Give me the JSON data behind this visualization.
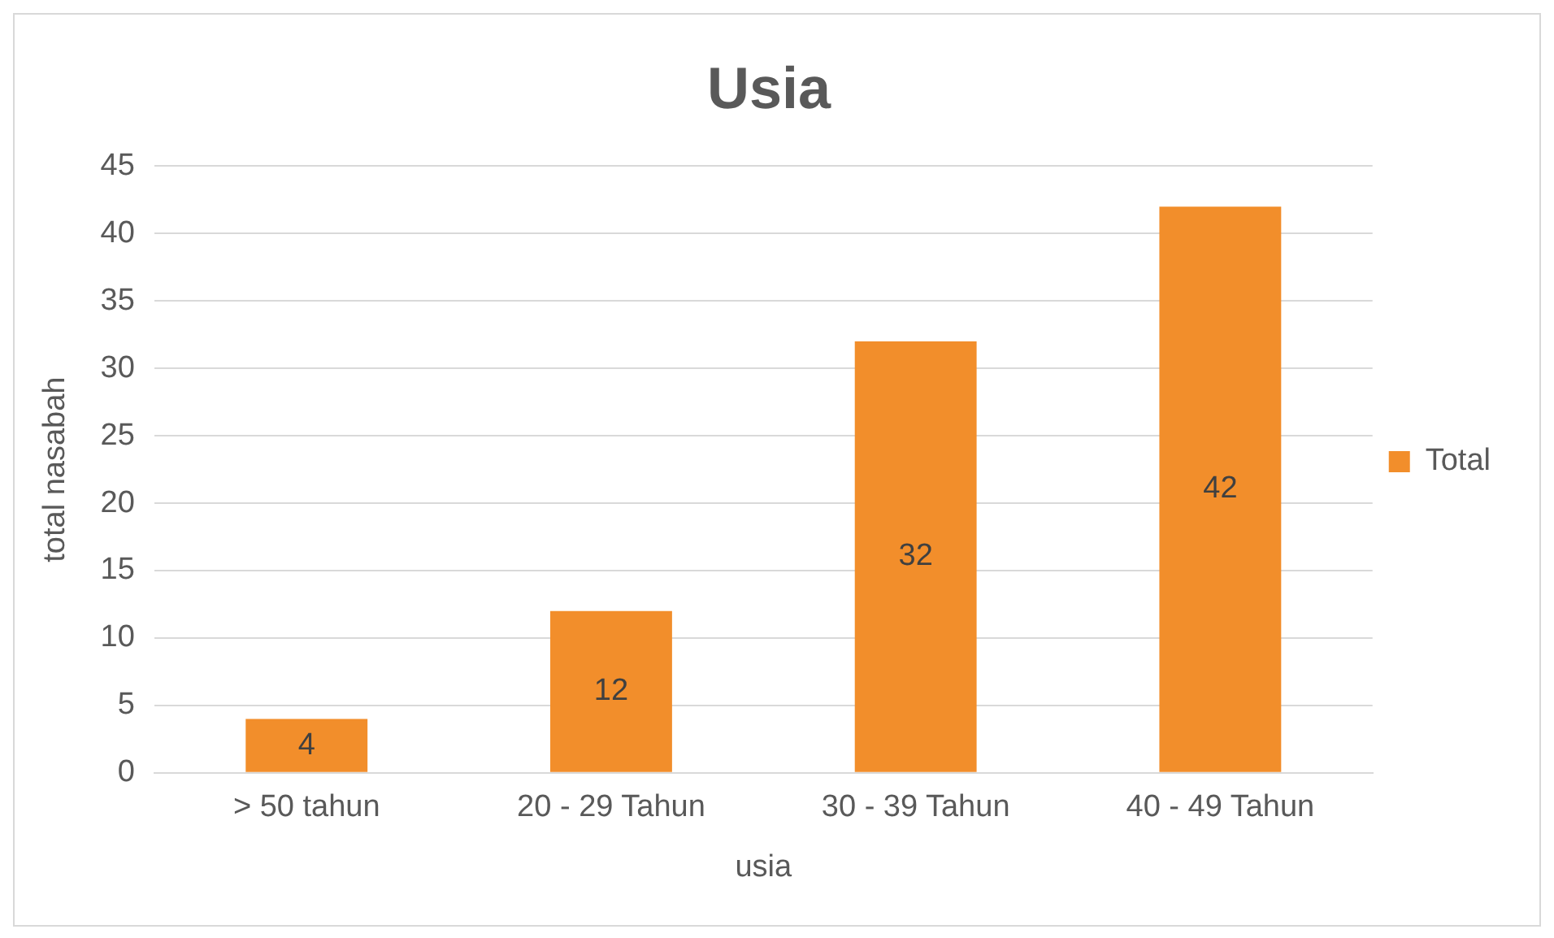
{
  "chart_data": {
    "type": "bar",
    "title": "Usia",
    "xlabel": "usia",
    "ylabel": "total nasabah",
    "categories": [
      "> 50 tahun",
      "20 - 29 Tahun",
      "30 - 39 Tahun",
      "40 - 49 Tahun"
    ],
    "series": [
      {
        "name": "Total",
        "color": "#f28e2b",
        "values": [
          4,
          12,
          32,
          42
        ]
      }
    ],
    "ylim": [
      0,
      45
    ],
    "yticks": [
      0,
      5,
      10,
      15,
      20,
      25,
      30,
      35,
      40,
      45
    ],
    "grid": "y",
    "legend": "right",
    "data_labels": true
  }
}
